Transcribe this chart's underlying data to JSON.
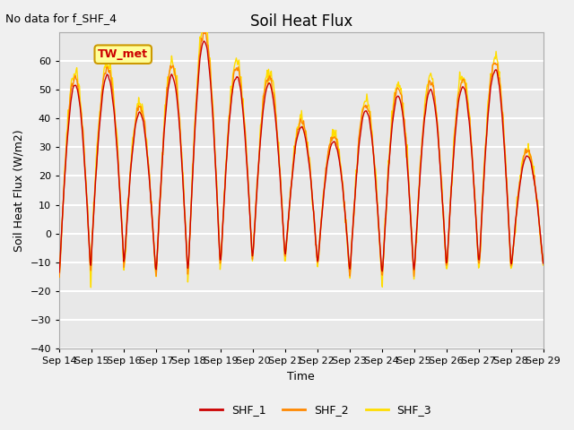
{
  "title": "Soil Heat Flux",
  "no_data_text": "No data for f_SHF_4",
  "xlabel": "Time",
  "ylabel": "Soil Heat Flux (W/m2)",
  "ylim": [
    -40,
    70
  ],
  "yticks": [
    -40,
    -30,
    -20,
    -10,
    0,
    10,
    20,
    30,
    40,
    50,
    60
  ],
  "xlim": [
    0,
    15
  ],
  "xtick_labels": [
    "Sep 14",
    "Sep 15",
    "Sep 16",
    "Sep 17",
    "Sep 18",
    "Sep 19",
    "Sep 20",
    "Sep 21",
    "Sep 22",
    "Sep 23",
    "Sep 24",
    "Sep 25",
    "Sep 26",
    "Sep 27",
    "Sep 28",
    "Sep 29"
  ],
  "colors": {
    "SHF_1": "#cc0000",
    "SHF_2": "#ff8800",
    "SHF_3": "#ffdd00"
  },
  "background_color": "#e8e8e8",
  "plot_bg_color": "#e8e8e8",
  "grid_color": "#ffffff",
  "legend_entries": [
    "SHF_1",
    "SHF_2",
    "SHF_3"
  ],
  "annotation_text": "TW_met",
  "annotation_color": "#cc0000",
  "annotation_bg": "#ffff99",
  "annotation_border": "#cc9900"
}
